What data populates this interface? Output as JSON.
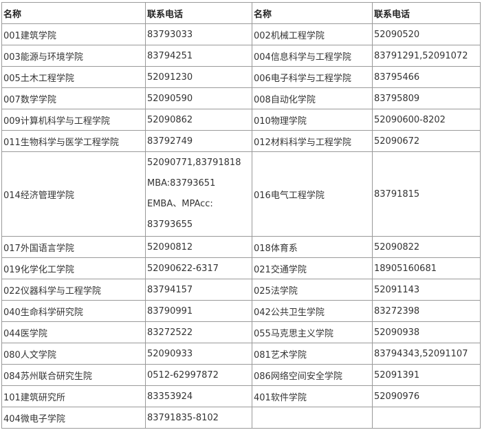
{
  "table": {
    "headers": [
      "名称",
      "联系电话",
      "名称",
      "联系电话"
    ],
    "rows": [
      [
        "001建筑学院",
        "83793033",
        "002机械工程学院",
        "52090520"
      ],
      [
        "003能源与环境学院",
        "83794251",
        "004信息科学与工程学院",
        "83791291,52091072"
      ],
      [
        "005土木工程学院",
        "52091230",
        "006电子科学与工程学院",
        "83795466"
      ],
      [
        "007数学学院",
        "52090590",
        "008自动化学院",
        "83795809"
      ],
      [
        "009计算机科学与工程学院",
        "52090862",
        "010物理学院",
        "52090600-8202"
      ],
      [
        "011生物科学与医学工程学院",
        "83792749",
        "012材料科学与工程学院",
        "52090672"
      ],
      [
        "014经济管理学院",
        [
          "52090771,83791818",
          "MBA:83793651",
          "EMBA、MPAcc:",
          "83793655"
        ],
        "016电气工程学院",
        "83791815"
      ],
      [
        "017外国语言学院",
        "52090812",
        "018体育系",
        "52090822"
      ],
      [
        "019化学化工学院",
        "52090622-6317",
        "021交通学院",
        "18905160681"
      ],
      [
        "022仪器科学与工程学院",
        "83794157",
        "025法学院",
        "52091143"
      ],
      [
        "040生命科学研究院",
        "83790991",
        "042公共卫生学院",
        "83272398"
      ],
      [
        "044医学院",
        "83272522",
        "055马克思主义学院",
        "52090938"
      ],
      [
        "080人文学院",
        "52090933",
        "081艺术学院",
        "83794343,52091107"
      ],
      [
        "084苏州联合研究生院",
        "0512-62997872",
        "086网络空间安全学院",
        "52091391"
      ],
      [
        "101建筑研究所",
        "83353924",
        "401软件学院",
        "52090976"
      ],
      [
        "404微电子学院",
        "83791835-8102",
        "",
        ""
      ]
    ]
  }
}
